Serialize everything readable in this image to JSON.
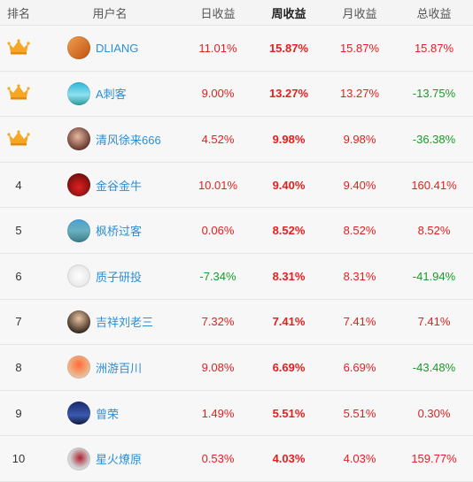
{
  "header": {
    "rank": "排名",
    "user": "用户名",
    "day": "日收益",
    "week": "周收益",
    "month": "月收益",
    "total": "总收益"
  },
  "colors": {
    "gain": "#e61e1e",
    "loss": "#1a9a2a",
    "link": "#2b8fd8",
    "crown": "#f5a623"
  },
  "rows": [
    {
      "rank": "",
      "crown": "1",
      "name": "DLIANG",
      "day": "11.01%",
      "week": "15.87%",
      "month": "15.87%",
      "total": "15.87%",
      "avatar": "linear-gradient(135deg,#f0a050,#c05010)",
      "icon": "crown-gold-icon"
    },
    {
      "rank": "",
      "crown": "2",
      "name": "A刺客",
      "day": "9.00%",
      "week": "13.27%",
      "month": "13.27%",
      "total": "-13.75%",
      "avatar": "linear-gradient(180deg,#2bb6d6,#8fe0f0 55%,#2a9a9a)",
      "icon": "crown-silver-icon"
    },
    {
      "rank": "",
      "crown": "3",
      "name": "清风徐来666",
      "day": "4.52%",
      "week": "9.98%",
      "month": "9.98%",
      "total": "-36.38%",
      "avatar": "radial-gradient(circle at 45% 40%,#e6b9a0,#6a3a30 70%)",
      "icon": "crown-bronze-icon"
    },
    {
      "rank": "4",
      "crown": "",
      "name": "金谷金牛",
      "day": "10.01%",
      "week": "9.40%",
      "month": "9.40%",
      "total": "160.41%",
      "avatar": "radial-gradient(circle at 50% 60%,#e02020,#7a1010 70%)"
    },
    {
      "rank": "5",
      "crown": "",
      "name": "枫桥过客",
      "day": "0.06%",
      "week": "8.52%",
      "month": "8.52%",
      "total": "8.52%",
      "avatar": "linear-gradient(180deg,#4aa0d0,#6ab0c0 50%,#3a7a8a)"
    },
    {
      "rank": "6",
      "crown": "",
      "name": "质子研投",
      "day": "-7.34%",
      "week": "8.31%",
      "month": "8.31%",
      "total": "-41.94%",
      "avatar": "radial-gradient(circle,#ffffff,#e6e6e6 70%)"
    },
    {
      "rank": "7",
      "crown": "",
      "name": "吉祥刘老三",
      "day": "7.32%",
      "week": "7.41%",
      "month": "7.41%",
      "total": "7.41%",
      "avatar": "radial-gradient(circle at 50% 35%,#e8c4a0,#3a2a20 75%)"
    },
    {
      "rank": "8",
      "crown": "",
      "name": "洲游百川",
      "day": "9.08%",
      "week": "6.69%",
      "month": "6.69%",
      "total": "-43.48%",
      "avatar": "radial-gradient(circle at 50% 40%,#ff6a3a,#f0b080 55%,#e0e0f0)"
    },
    {
      "rank": "9",
      "crown": "",
      "name": "曾荣",
      "day": "1.49%",
      "week": "5.51%",
      "month": "5.51%",
      "total": "0.30%",
      "avatar": "linear-gradient(180deg,#1a2a6a,#3a5ab0 60%,#101a3a)"
    },
    {
      "rank": "10",
      "crown": "",
      "name": "星火燎原",
      "day": "0.53%",
      "week": "4.03%",
      "month": "4.03%",
      "total": "159.77%",
      "avatar": "radial-gradient(circle at 55% 45%,#b02030,#d0d0d0 55%,#f4f4f4)"
    }
  ]
}
